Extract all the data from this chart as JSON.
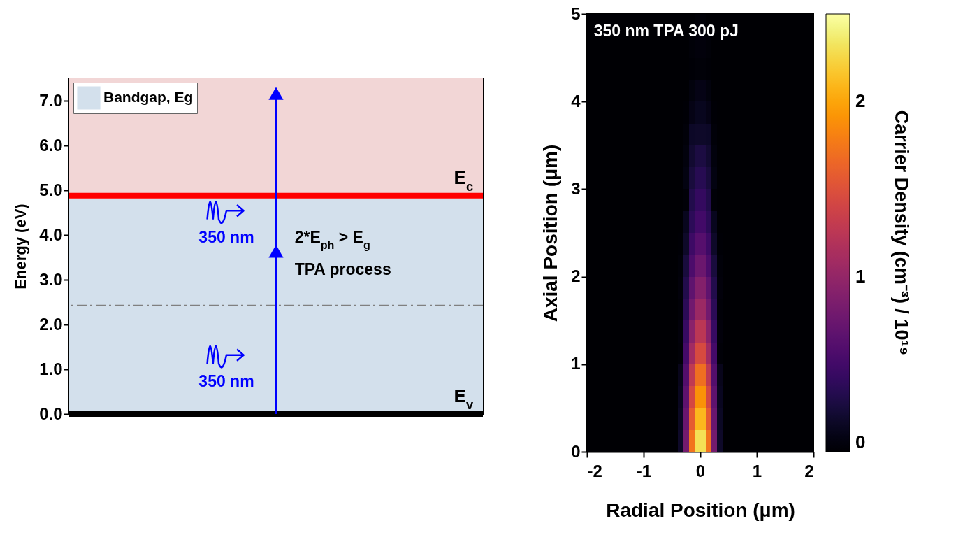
{
  "chart_data": [
    {
      "type": "bar",
      "stacked": true,
      "tick_labels": "y",
      "categories": [
        null
      ],
      "series": [
        {
          "name": "Bandgap, Eg",
          "color": "#d3e0ec",
          "values": [
            4.8
          ]
        },
        {
          "color": "#f2d6d6",
          "values": [
            2.7
          ]
        }
      ],
      "ylabel": "Energy (eV)",
      "ylim": [
        0,
        7.5
      ],
      "yticks": [
        {
          "value": 0,
          "label": "0.0"
        },
        {
          "value": 1,
          "label": "1.0"
        },
        {
          "value": 2,
          "label": "2.0"
        },
        {
          "value": 3,
          "label": "3.0"
        },
        {
          "value": 4,
          "label": "4.0"
        },
        {
          "value": 5,
          "label": "5.0"
        },
        {
          "value": 6,
          "label": "6.0"
        },
        {
          "value": 7,
          "label": "7.0"
        }
      ],
      "ref_lines": [
        {
          "axis": "y",
          "value": 4.88,
          "label": "E$_{c}$",
          "color": "#ff0000",
          "line_style": "solid"
        },
        {
          "axis": "y",
          "value": 0,
          "label": "E$_{v}$",
          "color": "#000000",
          "line_style": "solid"
        },
        {
          "axis": "y",
          "value": 2.43,
          "color": "#808080",
          "line_style": "dashed"
        }
      ],
      "annotations": [
        "350 nm",
        "350 nm",
        "2*E$_{ph}$ > E$_{g}$",
        "TPA process"
      ],
      "legend": "top left"
    },
    {
      "type": "heatmap",
      "xlabel": "Radial Position (μm)",
      "ylabel": "Axial Position (μm)",
      "clabel": "Carrier Density (cm⁻³) / 10¹⁹",
      "annotations": [
        "350 nm TPA 300 pJ"
      ],
      "xlim": [
        -2,
        2
      ],
      "xticks": [
        -2,
        -1,
        0,
        1,
        2
      ],
      "ylim": [
        0,
        5
      ],
      "yticks": [
        0,
        1,
        2,
        3,
        4,
        5
      ],
      "clim": [
        0,
        2.5
      ],
      "cticks": [
        0,
        1,
        2
      ],
      "x": [
        -1.95,
        -1.85,
        -1.75,
        -1.65,
        -1.55,
        -1.45,
        -1.35,
        -1.25,
        -1.15,
        -1.05,
        -0.95,
        -0.85,
        -0.75,
        -0.65,
        -0.55,
        -0.45,
        -0.35,
        -0.25,
        -0.15,
        -0.05,
        0.05,
        0.15,
        0.25,
        0.35,
        0.45,
        0.55,
        0.65,
        0.75,
        0.85,
        0.95,
        1.05,
        1.15,
        1.25,
        1.35,
        1.45,
        1.55,
        1.65,
        1.75,
        1.85,
        1.95
      ],
      "y": [
        4.875,
        4.625,
        4.375,
        4.125,
        3.875,
        3.625,
        3.375,
        3.125,
        2.875,
        2.625,
        2.375,
        2.125,
        1.875,
        1.625,
        1.375,
        1.125,
        0.875,
        0.625,
        0.375,
        0.125
      ],
      "cells": [
        [
          0,
          0,
          0,
          0,
          0,
          0,
          0,
          0,
          0,
          0,
          0,
          0,
          0,
          0,
          0,
          0,
          0,
          0,
          0,
          0.02,
          0.02,
          0,
          0,
          0,
          0,
          0,
          0,
          0,
          0,
          0,
          0,
          0,
          0,
          0,
          0,
          0,
          0,
          0,
          0,
          0
        ],
        [
          0,
          0,
          0,
          0,
          0,
          0,
          0,
          0,
          0,
          0,
          0,
          0,
          0,
          0,
          0,
          0,
          0,
          0,
          0.02,
          0.04,
          0.04,
          0.02,
          0,
          0,
          0,
          0,
          0,
          0,
          0,
          0,
          0,
          0,
          0,
          0,
          0,
          0,
          0,
          0,
          0,
          0
        ],
        [
          0,
          0,
          0,
          0,
          0,
          0,
          0,
          0,
          0,
          0,
          0,
          0,
          0,
          0,
          0,
          0,
          0,
          0,
          0.01,
          0.02,
          0.02,
          0.01,
          0,
          0,
          0,
          0,
          0,
          0,
          0,
          0,
          0,
          0,
          0,
          0,
          0,
          0,
          0,
          0,
          0,
          0
        ],
        [
          0,
          0,
          0,
          0,
          0,
          0,
          0,
          0,
          0,
          0,
          0,
          0,
          0,
          0,
          0,
          0,
          0,
          0,
          0.05,
          0.09,
          0.09,
          0.05,
          0,
          0,
          0,
          0,
          0,
          0,
          0,
          0,
          0,
          0,
          0,
          0,
          0,
          0,
          0,
          0,
          0,
          0
        ],
        [
          0,
          0,
          0,
          0,
          0,
          0,
          0,
          0,
          0,
          0,
          0,
          0,
          0,
          0,
          0,
          0,
          0,
          0.01,
          0.09,
          0.13,
          0.13,
          0.09,
          0.01,
          0,
          0,
          0,
          0,
          0,
          0,
          0,
          0,
          0,
          0,
          0,
          0,
          0,
          0,
          0,
          0,
          0
        ],
        [
          0,
          0,
          0,
          0,
          0,
          0,
          0,
          0,
          0,
          0,
          0,
          0,
          0,
          0,
          0,
          0,
          0,
          0.03,
          0.17,
          0.18,
          0.18,
          0.17,
          0.03,
          0,
          0,
          0,
          0,
          0,
          0,
          0,
          0,
          0,
          0,
          0,
          0,
          0,
          0,
          0,
          0,
          0
        ],
        [
          0,
          0,
          0,
          0,
          0,
          0,
          0,
          0,
          0,
          0,
          0,
          0,
          0,
          0,
          0,
          0,
          0,
          0.05,
          0.21,
          0.28,
          0.28,
          0.21,
          0.05,
          0,
          0,
          0,
          0,
          0,
          0,
          0,
          0,
          0,
          0,
          0,
          0,
          0,
          0,
          0,
          0,
          0
        ],
        [
          0,
          0,
          0,
          0,
          0,
          0,
          0,
          0,
          0,
          0,
          0,
          0,
          0,
          0,
          0,
          0,
          0,
          0.07,
          0.26,
          0.35,
          0.35,
          0.26,
          0.07,
          0,
          0,
          0,
          0,
          0,
          0,
          0,
          0,
          0,
          0,
          0,
          0,
          0,
          0,
          0,
          0,
          0
        ],
        [
          0,
          0,
          0,
          0,
          0,
          0,
          0,
          0,
          0,
          0,
          0,
          0,
          0,
          0,
          0,
          0,
          0,
          0.02,
          0.32,
          0.42,
          0.42,
          0.32,
          0.02,
          0,
          0,
          0,
          0,
          0,
          0,
          0,
          0,
          0,
          0,
          0,
          0,
          0,
          0,
          0,
          0,
          0
        ],
        [
          0,
          0,
          0,
          0,
          0,
          0,
          0,
          0,
          0,
          0,
          0,
          0,
          0,
          0,
          0,
          0,
          0,
          0.13,
          0.38,
          0.5,
          0.5,
          0.38,
          0.13,
          0,
          0,
          0,
          0,
          0,
          0,
          0,
          0,
          0,
          0,
          0,
          0,
          0,
          0,
          0,
          0,
          0
        ],
        [
          0,
          0,
          0,
          0,
          0,
          0,
          0,
          0,
          0,
          0,
          0,
          0,
          0,
          0,
          0,
          0,
          0.01,
          0.18,
          0.47,
          0.62,
          0.62,
          0.47,
          0.18,
          0.01,
          0,
          0,
          0,
          0,
          0,
          0,
          0,
          0,
          0,
          0,
          0,
          0,
          0,
          0,
          0,
          0
        ],
        [
          0,
          0,
          0,
          0,
          0,
          0,
          0,
          0,
          0,
          0,
          0,
          0,
          0,
          0,
          0,
          0,
          0.03,
          0.26,
          0.56,
          0.75,
          0.75,
          0.56,
          0.26,
          0.03,
          0,
          0,
          0,
          0,
          0,
          0,
          0,
          0,
          0,
          0,
          0,
          0,
          0,
          0,
          0,
          0
        ],
        [
          0,
          0,
          0,
          0,
          0,
          0,
          0,
          0,
          0,
          0,
          0,
          0,
          0,
          0,
          0,
          0,
          0.04,
          0.32,
          0.68,
          0.9,
          0.9,
          0.68,
          0.32,
          0.04,
          0,
          0,
          0,
          0,
          0,
          0,
          0,
          0,
          0,
          0,
          0,
          0,
          0,
          0,
          0,
          0
        ],
        [
          0,
          0,
          0,
          0,
          0,
          0,
          0,
          0,
          0,
          0,
          0,
          0,
          0,
          0,
          0,
          0,
          0.02,
          0.37,
          0.79,
          1.05,
          1.05,
          0.79,
          0.37,
          0.02,
          0,
          0,
          0,
          0,
          0,
          0,
          0,
          0,
          0,
          0,
          0,
          0,
          0,
          0,
          0,
          0
        ],
        [
          0,
          0,
          0,
          0,
          0,
          0,
          0,
          0,
          0,
          0,
          0,
          0,
          0,
          0,
          0,
          0,
          0.04,
          0.44,
          0.94,
          1.25,
          1.25,
          0.94,
          0.44,
          0.04,
          0,
          0,
          0,
          0,
          0,
          0,
          0,
          0,
          0,
          0,
          0,
          0,
          0,
          0,
          0,
          0
        ],
        [
          0,
          0,
          0,
          0,
          0,
          0,
          0,
          0,
          0,
          0,
          0,
          0,
          0,
          0,
          0,
          0,
          0.02,
          0.51,
          1.09,
          1.45,
          1.45,
          1.09,
          0.51,
          0.02,
          0,
          0,
          0,
          0,
          0,
          0,
          0,
          0,
          0,
          0,
          0,
          0,
          0,
          0,
          0,
          0
        ],
        [
          0,
          0,
          0,
          0,
          0,
          0,
          0,
          0,
          0,
          0,
          0,
          0,
          0,
          0,
          0,
          0,
          0.12,
          0.6,
          1.28,
          1.7,
          1.7,
          1.28,
          0.6,
          0.12,
          0,
          0,
          0,
          0,
          0,
          0,
          0,
          0,
          0,
          0,
          0,
          0,
          0,
          0,
          0,
          0
        ],
        [
          0,
          0,
          0,
          0,
          0,
          0,
          0,
          0,
          0,
          0,
          0,
          0,
          0,
          0,
          0,
          0,
          0.14,
          0.67,
          1.43,
          1.9,
          1.9,
          1.43,
          0.67,
          0.14,
          0,
          0,
          0,
          0,
          0,
          0,
          0,
          0,
          0,
          0,
          0,
          0,
          0,
          0,
          0,
          0
        ],
        [
          0,
          0,
          0,
          0,
          0,
          0,
          0,
          0,
          0,
          0,
          0,
          0,
          0,
          0,
          0,
          0,
          0.16,
          0.74,
          1.58,
          2.1,
          2.1,
          1.58,
          0.74,
          0.16,
          0,
          0,
          0,
          0,
          0,
          0,
          0,
          0,
          0,
          0,
          0,
          0,
          0,
          0,
          0,
          0
        ],
        [
          0,
          0,
          0,
          0,
          0,
          0,
          0,
          0,
          0,
          0,
          0,
          0,
          0,
          0,
          0,
          0,
          0.18,
          0.81,
          1.73,
          2.3,
          2.3,
          1.73,
          0.81,
          0.18,
          0,
          0,
          0,
          0,
          0,
          0,
          0,
          0,
          0,
          0,
          0,
          0,
          0,
          0,
          0,
          0
        ]
      ]
    }
  ]
}
